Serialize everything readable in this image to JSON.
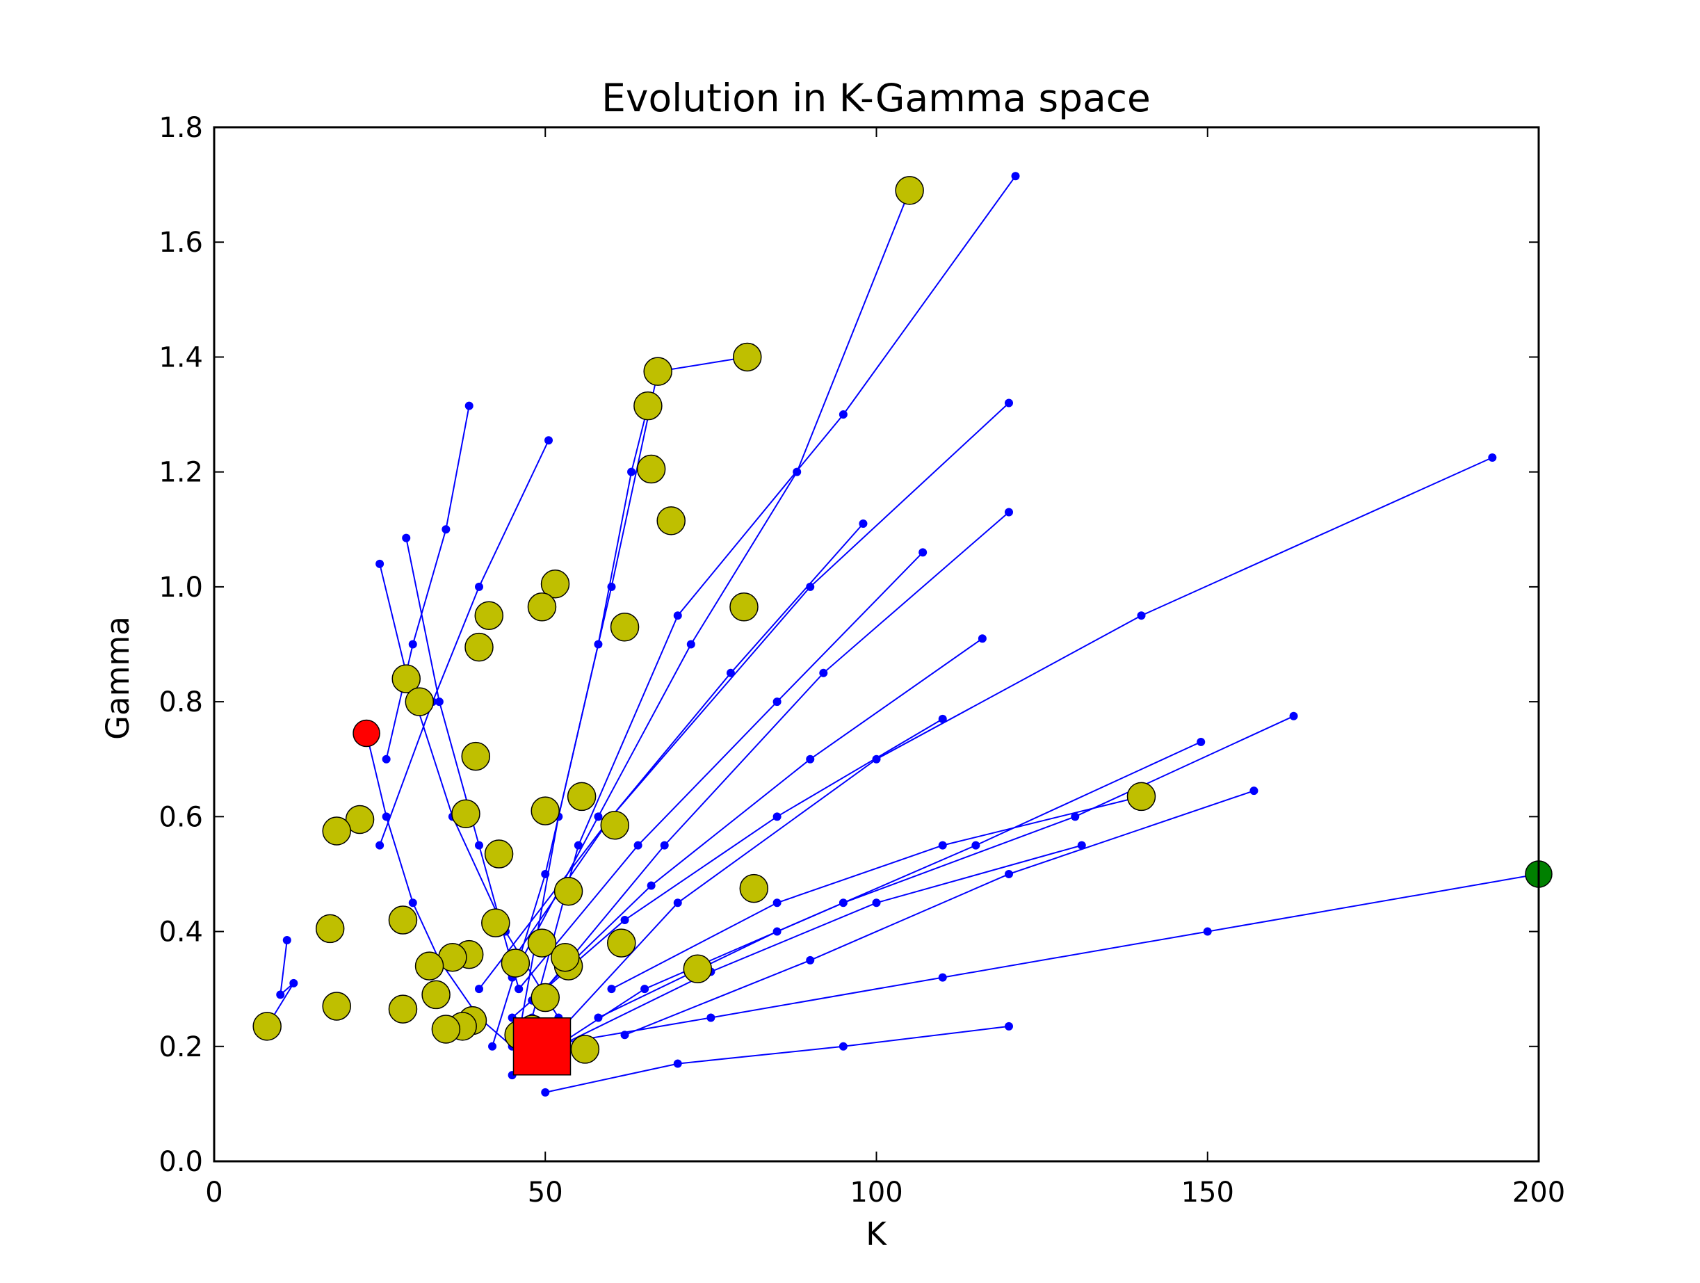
{
  "chart_data": {
    "type": "scatter",
    "title": "Evolution in K-Gamma space",
    "xlabel": "K",
    "ylabel": "Gamma",
    "xlim": [
      0,
      200
    ],
    "ylim": [
      0.0,
      1.8
    ],
    "grid": false,
    "xticks": [
      "0",
      "50",
      "100",
      "150",
      "200"
    ],
    "yticks": [
      "0.0",
      "0.2",
      "0.4",
      "0.6",
      "0.8",
      "1.0",
      "1.2",
      "1.4",
      "1.6",
      "1.8"
    ],
    "colors": {
      "trajectory": "#0000ff",
      "final": "#bfbf00",
      "start": "#ff0000",
      "best": "#ff0000",
      "other": "#008000"
    },
    "final_points": [
      [
        105,
        1.69
      ],
      [
        80.5,
        1.4
      ],
      [
        67,
        1.375
      ],
      [
        65.5,
        1.315
      ],
      [
        66,
        1.205
      ],
      [
        69,
        1.115
      ],
      [
        51.5,
        1.005
      ],
      [
        49.5,
        0.965
      ],
      [
        41.5,
        0.95
      ],
      [
        80,
        0.965
      ],
      [
        62,
        0.93
      ],
      [
        40,
        0.895
      ],
      [
        29,
        0.84
      ],
      [
        31,
        0.8
      ],
      [
        39.5,
        0.705
      ],
      [
        55.5,
        0.635
      ],
      [
        22,
        0.595
      ],
      [
        18.5,
        0.575
      ],
      [
        38,
        0.605
      ],
      [
        50,
        0.61
      ],
      [
        60.5,
        0.585
      ],
      [
        43,
        0.535
      ],
      [
        140,
        0.635
      ],
      [
        53.5,
        0.47
      ],
      [
        81.5,
        0.475
      ],
      [
        17.5,
        0.405
      ],
      [
        28.5,
        0.42
      ],
      [
        42.5,
        0.415
      ],
      [
        49.5,
        0.38
      ],
      [
        61.5,
        0.38
      ],
      [
        38.5,
        0.36
      ],
      [
        36,
        0.355
      ],
      [
        32.5,
        0.34
      ],
      [
        45.5,
        0.345
      ],
      [
        53.5,
        0.34
      ],
      [
        53,
        0.355
      ],
      [
        73,
        0.335
      ],
      [
        33.5,
        0.29
      ],
      [
        18.5,
        0.27
      ],
      [
        28.5,
        0.265
      ],
      [
        50,
        0.285
      ],
      [
        39,
        0.245
      ],
      [
        37.5,
        0.235
      ],
      [
        35,
        0.23
      ],
      [
        46,
        0.22
      ],
      [
        48,
        0.23
      ],
      [
        56,
        0.195
      ],
      [
        8,
        0.235
      ]
    ],
    "start_point": [
      23,
      0.745
    ],
    "best_point": [
      49.5,
      0.2
    ],
    "other_point": [
      200,
      0.5
    ],
    "series": [
      {
        "x": [
          8,
          12,
          10,
          11
        ],
        "y": [
          0.235,
          0.31,
          0.29,
          0.385
        ]
      },
      {
        "x": [
          105,
          88,
          72,
          58,
          45
        ],
        "y": [
          1.69,
          1.2,
          0.9,
          0.6,
          0.32
        ]
      },
      {
        "x": [
          121,
          95,
          70,
          55,
          48
        ],
        "y": [
          1.715,
          1.3,
          0.95,
          0.55,
          0.25
        ]
      },
      {
        "x": [
          80.5,
          67,
          60,
          52,
          46
        ],
        "y": [
          1.4,
          1.375,
          1.0,
          0.6,
          0.22
        ]
      },
      {
        "x": [
          65.5,
          63,
          58,
          50,
          42
        ],
        "y": [
          1.315,
          1.2,
          0.9,
          0.5,
          0.2
        ]
      },
      {
        "x": [
          193,
          140,
          100,
          70,
          50
        ],
        "y": [
          1.225,
          0.95,
          0.7,
          0.45,
          0.2
        ]
      },
      {
        "x": [
          200,
          150,
          110,
          75,
          49.5
        ],
        "y": [
          0.5,
          0.4,
          0.32,
          0.25,
          0.2
        ]
      },
      {
        "x": [
          120,
          90,
          60,
          40
        ],
        "y": [
          1.32,
          1.0,
          0.6,
          0.3
        ]
      },
      {
        "x": [
          38.5,
          35,
          30,
          26
        ],
        "y": [
          1.315,
          1.1,
          0.9,
          0.7
        ]
      },
      {
        "x": [
          50.5,
          40,
          33,
          25
        ],
        "y": [
          1.255,
          1.0,
          0.8,
          0.55
        ]
      },
      {
        "x": [
          140,
          110,
          85,
          60
        ],
        "y": [
          0.635,
          0.55,
          0.45,
          0.3
        ]
      },
      {
        "x": [
          163,
          130,
          95,
          65,
          45
        ],
        "y": [
          0.775,
          0.6,
          0.45,
          0.3,
          0.15
        ]
      },
      {
        "x": [
          157,
          120,
          90,
          62
        ],
        "y": [
          0.645,
          0.5,
          0.35,
          0.22
        ]
      },
      {
        "x": [
          120,
          95,
          70,
          50
        ],
        "y": [
          0.235,
          0.2,
          0.17,
          0.12
        ]
      },
      {
        "x": [
          23,
          26,
          30,
          34,
          40,
          45
        ],
        "y": [
          0.745,
          0.6,
          0.45,
          0.35,
          0.25,
          0.2
        ]
      },
      {
        "x": [
          25,
          29,
          36,
          44,
          52
        ],
        "y": [
          1.04,
          0.85,
          0.6,
          0.4,
          0.25
        ]
      },
      {
        "x": [
          29,
          34,
          40,
          46
        ],
        "y": [
          1.085,
          0.8,
          0.55,
          0.3
        ]
      },
      {
        "x": [
          116,
          90,
          66,
          48
        ],
        "y": [
          0.91,
          0.7,
          0.48,
          0.28
        ]
      },
      {
        "x": [
          110,
          85,
          62,
          45
        ],
        "y": [
          0.77,
          0.6,
          0.42,
          0.25
        ]
      },
      {
        "x": [
          131,
          100,
          75,
          52
        ],
        "y": [
          0.55,
          0.45,
          0.33,
          0.2
        ]
      },
      {
        "x": [
          149,
          115,
          85,
          58
        ],
        "y": [
          0.73,
          0.55,
          0.4,
          0.25
        ]
      },
      {
        "x": [
          98,
          78,
          60,
          45
        ],
        "y": [
          1.11,
          0.85,
          0.6,
          0.35
        ]
      },
      {
        "x": [
          107,
          85,
          64,
          46
        ],
        "y": [
          1.06,
          0.8,
          0.55,
          0.3
        ]
      },
      {
        "x": [
          120,
          92,
          68,
          50
        ],
        "y": [
          1.13,
          0.85,
          0.55,
          0.3
        ]
      }
    ]
  }
}
